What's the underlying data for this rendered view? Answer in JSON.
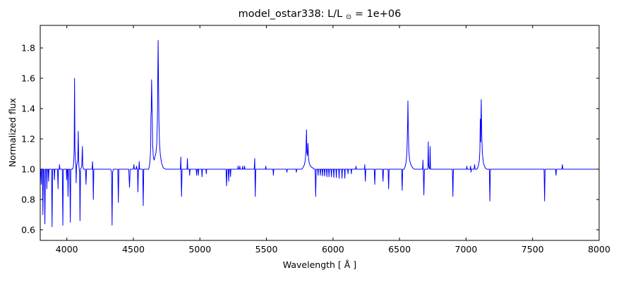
{
  "title": {
    "prefix": "model_ostar338: L/L",
    "sub": "⊙",
    "suffix": " = 1e+06"
  },
  "chart_data": {
    "type": "line",
    "title": "model_ostar338: L/L⊙ = 1e+06",
    "xlabel": "Wavelength [ Å ]",
    "ylabel": "Normalized flux",
    "xlim": [
      3800,
      8000
    ],
    "ylim": [
      0.53,
      1.949
    ],
    "grid": false,
    "legend": "none",
    "line_color": "#0000ff",
    "continuum_level": 1.0,
    "xticks": {
      "values": [
        4000,
        4500,
        5000,
        5500,
        6000,
        6500,
        7000,
        7500,
        8000
      ],
      "labels": [
        "4000",
        "4500",
        "5000",
        "5500",
        "6000",
        "6500",
        "7000",
        "7500",
        "8000"
      ]
    },
    "yticks": {
      "values": [
        0.6,
        0.8,
        1.0,
        1.2,
        1.4,
        1.6,
        1.8
      ],
      "labels": [
        "0.6",
        "0.8",
        "1.0",
        "1.2",
        "1.4",
        "1.6",
        "1.8"
      ]
    },
    "series": [
      {
        "name": "normalized-flux-spectrum",
        "x": [
          3800,
          3804,
          3808,
          3811,
          3817,
          3820,
          3824,
          3831,
          3835,
          3839,
          3847,
          3850,
          3853,
          3860,
          3863,
          3866,
          3885,
          3889,
          3893,
          3904,
          3907,
          3910,
          3930,
          3934,
          3937,
          3942,
          3945,
          3948,
          3966,
          3970,
          3974,
          3996,
          3999,
          4002,
          4006,
          4009,
          4013,
          4022,
          4026,
          4030,
          4042,
          4048,
          4052,
          4055,
          4058,
          4061,
          4065,
          4068,
          4070,
          4073,
          4078,
          4082,
          4086,
          4089,
          4092,
          4096,
          4099,
          4103,
          4108,
          4112,
          4117,
          4120,
          4126,
          4140,
          4144,
          4148,
          4165,
          4190,
          4193,
          4196,
          4199,
          4203,
          4240,
          4330,
          4336,
          4340,
          4344,
          4350,
          4383,
          4387,
          4391,
          4465,
          4471,
          4476,
          4500,
          4504,
          4508,
          4520,
          4524,
          4528,
          4531,
          4534,
          4538,
          4541,
          4544,
          4547,
          4570,
          4574,
          4578,
          4600,
          4615,
          4622,
          4627,
          4630,
          4632,
          4634,
          4637,
          4641,
          4645,
          4650,
          4656,
          4662,
          4670,
          4676,
          4681,
          4684,
          4686,
          4689,
          4692,
          4697,
          4703,
          4712,
          4724,
          4740,
          4790,
          4853,
          4857,
          4859,
          4862,
          4866,
          4903,
          4906,
          4909,
          4920,
          4923,
          4926,
          4972,
          4975,
          4978,
          4985,
          4988,
          4991,
          5013,
          5016,
          5019,
          5045,
          5048,
          5051,
          5120,
          5196,
          5200,
          5204,
          5213,
          5216,
          5220,
          5227,
          5230,
          5233,
          5284,
          5287,
          5290,
          5297,
          5300,
          5303,
          5319,
          5322,
          5325,
          5333,
          5336,
          5339,
          5408,
          5412,
          5414,
          5416,
          5420,
          5492,
          5495,
          5498,
          5549,
          5552,
          5555,
          5650,
          5654,
          5657,
          5722,
          5725,
          5728,
          5765,
          5775,
          5785,
          5792,
          5797,
          5801,
          5804,
          5808,
          5812,
          5816,
          5822,
          5831,
          5845,
          5860,
          5866,
          5870,
          5874,
          5885,
          5888,
          5891,
          5902,
          5905,
          5908,
          5918,
          5921,
          5924,
          5934,
          5937,
          5940,
          5951,
          5954,
          5957,
          5967,
          5970,
          5973,
          5985,
          5988,
          5991,
          6003,
          6006,
          6009,
          6022,
          6025,
          6028,
          6043,
          6046,
          6049,
          6065,
          6068,
          6071,
          6086,
          6089,
          6092,
          6110,
          6113,
          6116,
          6135,
          6138,
          6141,
          6170,
          6173,
          6176,
          6236,
          6239,
          6243,
          6247,
          6310,
          6314,
          6318,
          6372,
          6376,
          6380,
          6414,
          6418,
          6422,
          6516,
          6520,
          6524,
          6535,
          6543,
          6550,
          6555,
          6558,
          6561,
          6563,
          6566,
          6570,
          6576,
          6585,
          6598,
          6612,
          6673,
          6676,
          6679,
          6683,
          6687,
          6713,
          6716,
          6719,
          6727,
          6730,
          6733,
          6770,
          6897,
          6901,
          6905,
          7003,
          7006,
          7009,
          7031,
          7034,
          7037,
          7040,
          7060,
          7064,
          7068,
          7082,
          7092,
          7100,
          7104,
          7107,
          7110,
          7114,
          7118,
          7123,
          7131,
          7143,
          7155,
          7175,
          7179,
          7183,
          7350,
          7586,
          7590,
          7594,
          7672,
          7676,
          7680,
          7720,
          7724,
          7728,
          7850,
          8000
        ],
        "y": [
          0.97,
          1.0,
          0.9,
          1.0,
          1.0,
          0.7,
          1.0,
          1.0,
          0.64,
          1.0,
          1.0,
          0.87,
          1.0,
          1.0,
          0.92,
          1.0,
          1.0,
          0.62,
          1.0,
          1.0,
          0.93,
          1.0,
          1.0,
          0.87,
          1.0,
          1.0,
          1.03,
          1.0,
          1.0,
          0.63,
          1.0,
          1.0,
          0.93,
          1.0,
          1.0,
          0.82,
          1.0,
          1.0,
          0.65,
          1.0,
          1.0,
          1.01,
          1.05,
          1.13,
          1.6,
          1.13,
          1.05,
          1.03,
          0.91,
          1.02,
          1.04,
          1.06,
          1.25,
          1.05,
          1.01,
          0.98,
          0.66,
          1.0,
          1.01,
          1.02,
          1.15,
          1.02,
          1.0,
          1.0,
          0.9,
          1.0,
          1.0,
          1.0,
          1.05,
          1.0,
          0.8,
          1.0,
          1.0,
          1.0,
          0.98,
          0.63,
          0.98,
          1.0,
          1.0,
          0.78,
          1.0,
          1.0,
          0.88,
          1.0,
          1.0,
          1.03,
          1.0,
          1.0,
          1.02,
          1.0,
          1.0,
          0.85,
          1.0,
          1.0,
          1.05,
          1.0,
          1.0,
          0.76,
          1.0,
          1.0,
          1.0,
          1.03,
          1.08,
          1.15,
          1.36,
          1.38,
          1.59,
          1.38,
          1.16,
          1.08,
          1.06,
          1.08,
          1.11,
          1.17,
          1.35,
          1.66,
          1.85,
          1.58,
          1.32,
          1.16,
          1.09,
          1.04,
          1.01,
          1.0,
          1.0,
          1.0,
          1.08,
          0.96,
          0.82,
          1.0,
          1.0,
          1.07,
          1.0,
          1.0,
          0.96,
          1.0,
          1.0,
          0.96,
          1.0,
          1.0,
          0.96,
          1.0,
          1.0,
          0.95,
          1.0,
          1.0,
          0.97,
          1.0,
          1.0,
          1.0,
          0.89,
          1.0,
          1.0,
          0.92,
          1.0,
          1.0,
          0.95,
          1.0,
          1.0,
          1.02,
          1.0,
          1.0,
          1.02,
          1.0,
          1.0,
          1.02,
          1.0,
          1.0,
          1.02,
          1.0,
          1.0,
          1.07,
          0.95,
          0.82,
          1.0,
          1.0,
          1.02,
          1.0,
          1.0,
          0.96,
          1.0,
          1.0,
          0.98,
          1.0,
          1.0,
          0.98,
          1.0,
          1.0,
          1.01,
          1.03,
          1.06,
          1.12,
          1.26,
          1.11,
          1.09,
          1.17,
          1.07,
          1.04,
          1.02,
          1.01,
          1.0,
          1.0,
          0.82,
          1.0,
          1.0,
          0.96,
          1.0,
          1.0,
          0.96,
          1.0,
          1.0,
          0.955,
          1.0,
          1.0,
          0.955,
          1.0,
          1.0,
          0.95,
          1.0,
          1.0,
          0.95,
          1.0,
          1.0,
          0.95,
          1.0,
          1.0,
          0.945,
          1.0,
          1.0,
          0.945,
          1.0,
          1.0,
          0.94,
          1.0,
          1.0,
          0.94,
          1.0,
          1.0,
          0.94,
          1.0,
          1.0,
          0.97,
          1.0,
          1.0,
          0.97,
          1.0,
          1.0,
          1.02,
          1.0,
          1.0,
          1.03,
          0.92,
          1.0,
          1.0,
          0.9,
          1.0,
          1.0,
          0.92,
          1.0,
          1.0,
          0.87,
          1.0,
          1.0,
          0.86,
          1.0,
          1.0,
          1.02,
          1.05,
          1.1,
          1.2,
          1.3,
          1.45,
          1.28,
          1.12,
          1.06,
          1.03,
          1.01,
          1.0,
          1.0,
          1.06,
          0.98,
          0.83,
          1.0,
          1.0,
          1.18,
          1.02,
          1.0,
          1.15,
          1.0,
          1.0,
          1.0,
          0.82,
          1.0,
          1.0,
          1.02,
          1.0,
          1.0,
          1.02,
          0.98,
          1.0,
          1.0,
          1.03,
          1.0,
          1.0,
          1.02,
          1.06,
          1.13,
          1.33,
          1.18,
          1.46,
          1.22,
          1.1,
          1.04,
          1.01,
          1.0,
          1.0,
          0.79,
          1.0,
          1.0,
          1.0,
          0.79,
          1.0,
          1.0,
          0.96,
          1.0,
          1.0,
          1.03,
          1.0,
          1.0,
          1.0
        ]
      }
    ]
  }
}
